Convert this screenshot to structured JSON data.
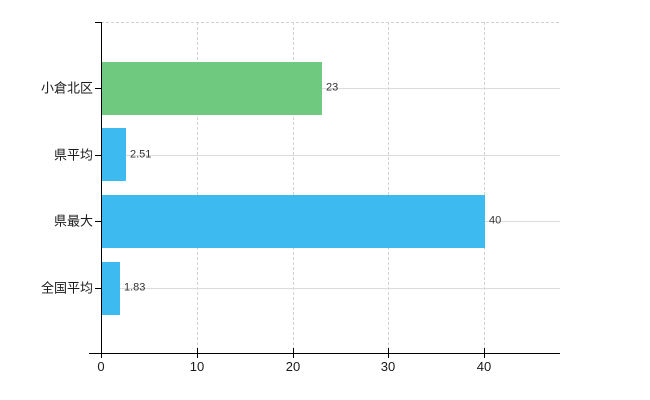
{
  "chart_data": {
    "type": "bar",
    "orientation": "horizontal",
    "title": "",
    "categories": [
      "小倉北区",
      "県平均",
      "県最大",
      "全国平均"
    ],
    "values": [
      23,
      2.51,
      40,
      1.83
    ],
    "value_labels": [
      "23",
      "2.51",
      "40",
      "1.83"
    ],
    "bar_colors": [
      "#6fca80",
      "#3dbbf1",
      "#3dbbf1",
      "#3dbbf1"
    ],
    "x_tick_values": [
      0,
      10,
      20,
      30,
      40
    ],
    "x_tick_labels": [
      "0",
      "10",
      "20",
      "30",
      "40"
    ],
    "xlim": [
      0,
      47.9
    ],
    "grid": "on",
    "legend": "none"
  },
  "colors": {
    "background": "#ffffff",
    "axis": "#000000",
    "grid_solid": "#dcdcdc",
    "grid_dashed": "#d2d2d2",
    "category_text": "#1a1a1a",
    "value_text": "#333333",
    "green_bar": "#6fca80",
    "blue_bar": "#3dbbf1"
  }
}
